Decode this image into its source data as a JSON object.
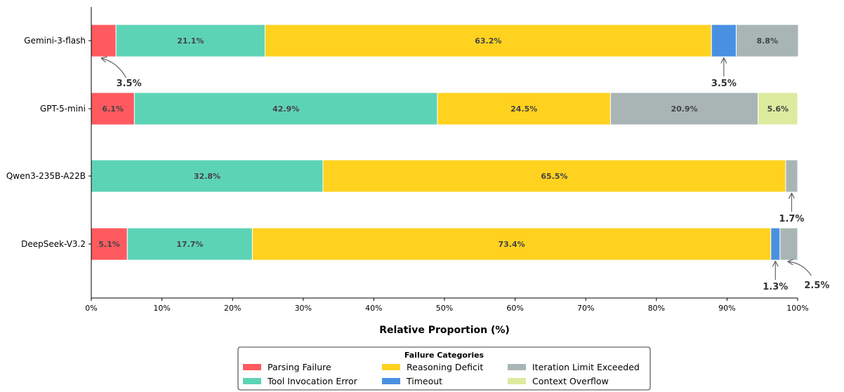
{
  "chart_data": {
    "type": "bar",
    "orientation": "horizontal",
    "stacked": true,
    "xlabel": "Relative Proportion (%)",
    "xlim": [
      0,
      100
    ],
    "xticks": [
      0,
      10,
      20,
      30,
      40,
      50,
      60,
      70,
      80,
      90,
      100
    ],
    "xtick_labels": [
      "0%",
      "10%",
      "20%",
      "30%",
      "40%",
      "50%",
      "60%",
      "70%",
      "80%",
      "90%",
      "100%"
    ],
    "grid": false,
    "legend": {
      "title": "Failure Categories",
      "placement": "bottom-center",
      "columns": 3
    },
    "categories": [
      "Gemini-3-flash",
      "GPT-5-mini",
      "Qwen3-235B-A22B",
      "DeepSeek-V3.2"
    ],
    "series": [
      {
        "name": "Parsing Failure",
        "color": "#FF5A5F",
        "values": [
          3.5,
          6.1,
          0,
          5.1
        ]
      },
      {
        "name": "Tool Invocation Error",
        "color": "#5DD3B6",
        "values": [
          21.1,
          42.9,
          32.8,
          17.7
        ]
      },
      {
        "name": "Reasoning Deficit",
        "color": "#FFD21F",
        "values": [
          63.2,
          24.5,
          65.5,
          73.4
        ]
      },
      {
        "name": "Timeout",
        "color": "#4A90E2",
        "values": [
          3.5,
          0,
          0,
          1.3
        ]
      },
      {
        "name": "Iteration Limit Exceeded",
        "color": "#A9B5B5",
        "values": [
          8.8,
          20.9,
          1.7,
          2.5
        ]
      },
      {
        "name": "Context Overflow",
        "color": "#DCEB9E",
        "values": [
          0,
          5.6,
          0,
          0
        ]
      }
    ],
    "segment_labels": [
      [
        "",
        "21.1%",
        "63.2%",
        "",
        "8.8%",
        ""
      ],
      [
        "6.1%",
        "42.9%",
        "24.5%",
        "",
        "20.9%",
        "5.6%"
      ],
      [
        "",
        "32.8%",
        "65.5%",
        "",
        "",
        ""
      ],
      [
        "5.1%",
        "17.7%",
        "73.4%",
        "",
        "",
        ""
      ]
    ],
    "annotations": [
      {
        "category": "Gemini-3-flash",
        "series": "Parsing Failure",
        "text": "3.5%"
      },
      {
        "category": "Gemini-3-flash",
        "series": "Timeout",
        "text": "3.5%"
      },
      {
        "category": "Qwen3-235B-A22B",
        "series": "Iteration Limit Exceeded",
        "text": "1.7%"
      },
      {
        "category": "DeepSeek-V3.2",
        "series": "Timeout",
        "text": "1.3%"
      },
      {
        "category": "DeepSeek-V3.2",
        "series": "Iteration Limit Exceeded",
        "text": "2.5%"
      }
    ]
  }
}
